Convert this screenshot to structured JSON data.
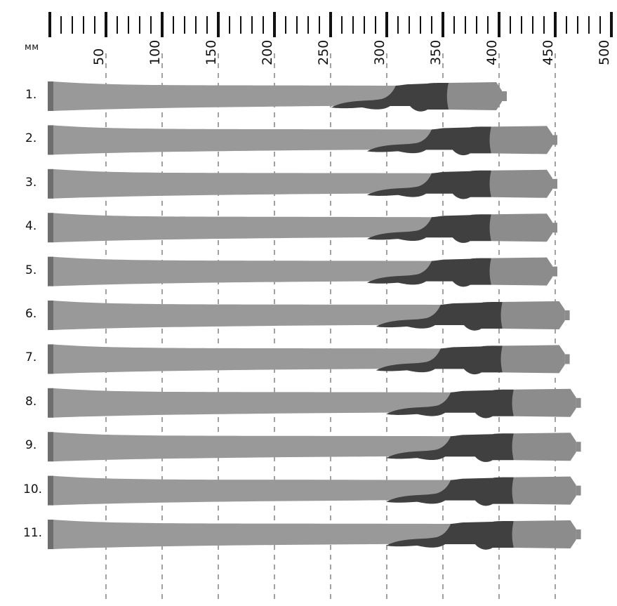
{
  "ruler": {
    "unit": "мм",
    "tick_labels": [
      "50",
      "100",
      "150",
      "200",
      "250",
      "300",
      "350",
      "400",
      "450",
      "500"
    ]
  },
  "rows": [
    {
      "label": "1.",
      "overall_mm": 400,
      "dark_start_mm": 308,
      "band_mm": 355
    },
    {
      "label": "2.",
      "overall_mm": 445,
      "dark_start_mm": 340,
      "band_mm": 393
    },
    {
      "label": "3.",
      "overall_mm": 445,
      "dark_start_mm": 340,
      "band_mm": 393
    },
    {
      "label": "4.",
      "overall_mm": 445,
      "dark_start_mm": 340,
      "band_mm": 393
    },
    {
      "label": "5.",
      "overall_mm": 445,
      "dark_start_mm": 340,
      "band_mm": 393
    },
    {
      "label": "6.",
      "overall_mm": 456,
      "dark_start_mm": 348,
      "band_mm": 403
    },
    {
      "label": "7.",
      "overall_mm": 456,
      "dark_start_mm": 348,
      "band_mm": 403
    },
    {
      "label": "8.",
      "overall_mm": 466,
      "dark_start_mm": 357,
      "band_mm": 413
    },
    {
      "label": "9.",
      "overall_mm": 466,
      "dark_start_mm": 357,
      "band_mm": 413
    },
    {
      "label": "10.",
      "overall_mm": 466,
      "dark_start_mm": 357,
      "band_mm": 413
    },
    {
      "label": "11.",
      "overall_mm": 466,
      "dark_start_mm": 357,
      "band_mm": 413
    }
  ],
  "colors": {
    "light": "#999999",
    "mid": "#8c8c8c",
    "dark": "#404040",
    "cap": "#6e6e6e",
    "ruler": "#111111",
    "grid": "#8a8a8a"
  }
}
